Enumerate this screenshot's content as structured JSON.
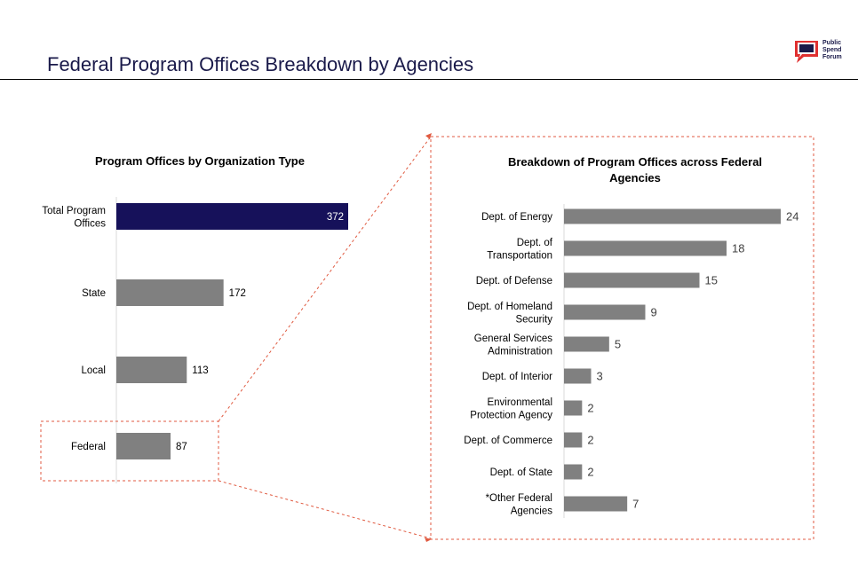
{
  "page": {
    "title": "Federal Program Offices Breakdown by Agencies",
    "logo": {
      "lines": [
        "Public",
        "Spend",
        "Forum"
      ],
      "brand_color": "#1a1a4a",
      "accent_color": "#e03030"
    }
  },
  "colors": {
    "highlight_bar": "#16115a",
    "bar": "#808080",
    "callout_border": "#e05a40"
  },
  "chart_data": [
    {
      "type": "bar",
      "orientation": "horizontal",
      "title": "Program Offices by Organization Type",
      "categories": [
        "Total Program Offices",
        "State",
        "Local",
        "Federal"
      ],
      "values": [
        372,
        172,
        113,
        87
      ],
      "highlight": "Total Program Offices",
      "callout": "Federal",
      "grid": false,
      "legend": "none"
    },
    {
      "type": "bar",
      "orientation": "horizontal",
      "title": "Breakdown of Program Offices across Federal Agencies",
      "categories": [
        "Dept. of Energy",
        "Dept. of Transportation",
        "Dept. of Defense",
        "Dept. of Homeland Security",
        "General Services Administration",
        "Dept. of Interior",
        "Environmental Protection Agency",
        "Dept. of Commerce",
        "Dept. of State",
        "*Other Federal Agencies"
      ],
      "values": [
        24,
        18,
        15,
        9,
        5,
        3,
        2,
        2,
        2,
        7
      ],
      "grid": false,
      "legend": "none"
    }
  ]
}
